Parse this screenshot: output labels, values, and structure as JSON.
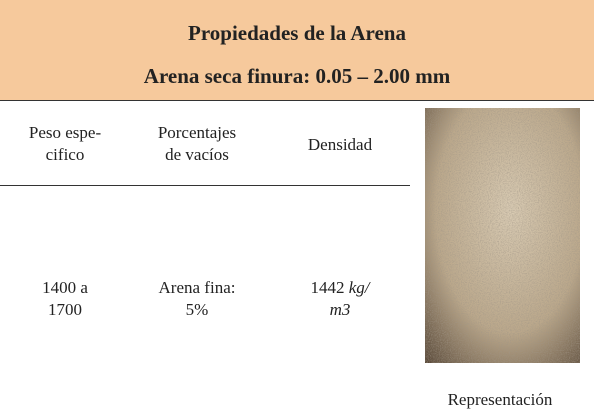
{
  "header": {
    "title": "Propiedades de la Arena",
    "subtitle": "Arena seca finura: 0.05 – 2.00 mm"
  },
  "table": {
    "columns": [
      [
        "Peso espe-",
        "cifico"
      ],
      [
        "Porcentajes",
        "de vacíos"
      ],
      [
        "Densidad"
      ]
    ],
    "row": {
      "peso": [
        "1400 a",
        "1700"
      ],
      "vacios": [
        "Arena fina:",
        "5%"
      ],
      "densidad": {
        "number": "1442",
        "unit_top": "kg/",
        "unit_bottom": "m3"
      }
    }
  },
  "image": {
    "caption": "Representación"
  }
}
